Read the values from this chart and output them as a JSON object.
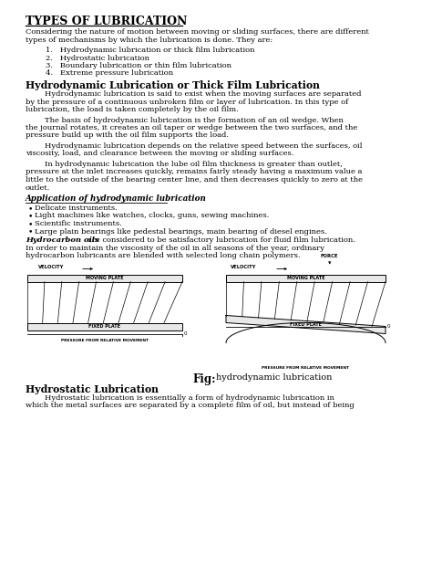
{
  "bg_color": "#ffffff",
  "title": "TYPES OF LUBRICATION",
  "intro_line1": "Considering the nature of motion between moving or sliding surfaces, there are different",
  "intro_line2": "types of mechanisms by which the lubrication is done. They are:",
  "list_items": [
    "1.   Hydrodynamic lubrication or thick film lubrication",
    "2.   Hydrostatic lubrication",
    "3.   Boundary lubrication or thin film lubrication",
    "4.   Extreme pressure lubrication"
  ],
  "section1_title": "Hydrodynamic Lubrication or Thick Film Lubrication",
  "para1_lines": [
    "        Hydrodynamic lubrication is said to exist when the moving surfaces are separated",
    "by the pressure of a continuous unbroken film or layer of lubrication. In this type of",
    "lubrication, the load is taken completely by the oil film."
  ],
  "para2_lines": [
    "        The basis of hydrodynamic lubrication is the formation of an oil wedge. When",
    "the journal rotates, it creates an oil taper or wedge between the two surfaces, and the",
    "pressure build up with the oil film supports the load."
  ],
  "para3_lines": [
    "        Hydrodynamic lubrication depends on the relative speed between the surfaces, oil",
    "viscosity, load, and clearance between the moving or sliding surfaces."
  ],
  "para4_lines": [
    "        In hydrodynamic lubrication the lube oil film thickness is greater than outlet,",
    "pressure at the inlet increases quickly, remains fairly steady having a maximum value a",
    "little to the outside of the bearing center line, and then decreases quickly to zero at the",
    "outlet."
  ],
  "app_title": "Application of hydrodynamic lubrication",
  "bullet_items": [
    "Delicate instruments.",
    "Light machines like watches, clocks, guns, sewing machines.",
    "Scientific instruments.",
    "Large plain bearings like pedestal bearings, main bearing of diesel engines."
  ],
  "italic_para_lines": [
    "are considered to be satisfactory lubrication for fluid film lubrication.",
    "In order to maintain the viscosity of the oil in all seasons of the year, ordinary",
    "hydrocarbon lubricants are blended with selected long chain polymers."
  ],
  "fig_bold": "Fig:",
  "fig_normal": "hydrodynamic lubrication",
  "section2_title": "Hydrostatic Lubrication",
  "para5_lines": [
    "        Hydrostatic lubrication is essentially a form of hydrodynamic lubrication in",
    "which the metal surfaces are separated by a complete film of oil, but instead of being"
  ]
}
